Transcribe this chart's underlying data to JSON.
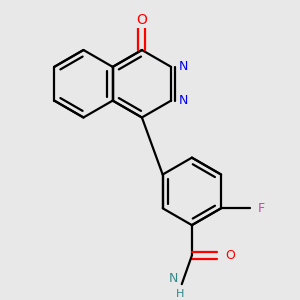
{
  "bg": "#e8e8e8",
  "bond_color": "#000000",
  "colors": {
    "O": "#ff0000",
    "N": "#0000ee",
    "F": "#cc44aa",
    "NH_N": "#338888",
    "NH_H": "#338888",
    "amide_O": "#ff0000"
  },
  "lw": 1.6,
  "fs": 9,
  "figsize": [
    3.0,
    3.0
  ],
  "dpi": 100,
  "xlim": [
    0,
    10
  ],
  "ylim": [
    0,
    10.5
  ]
}
